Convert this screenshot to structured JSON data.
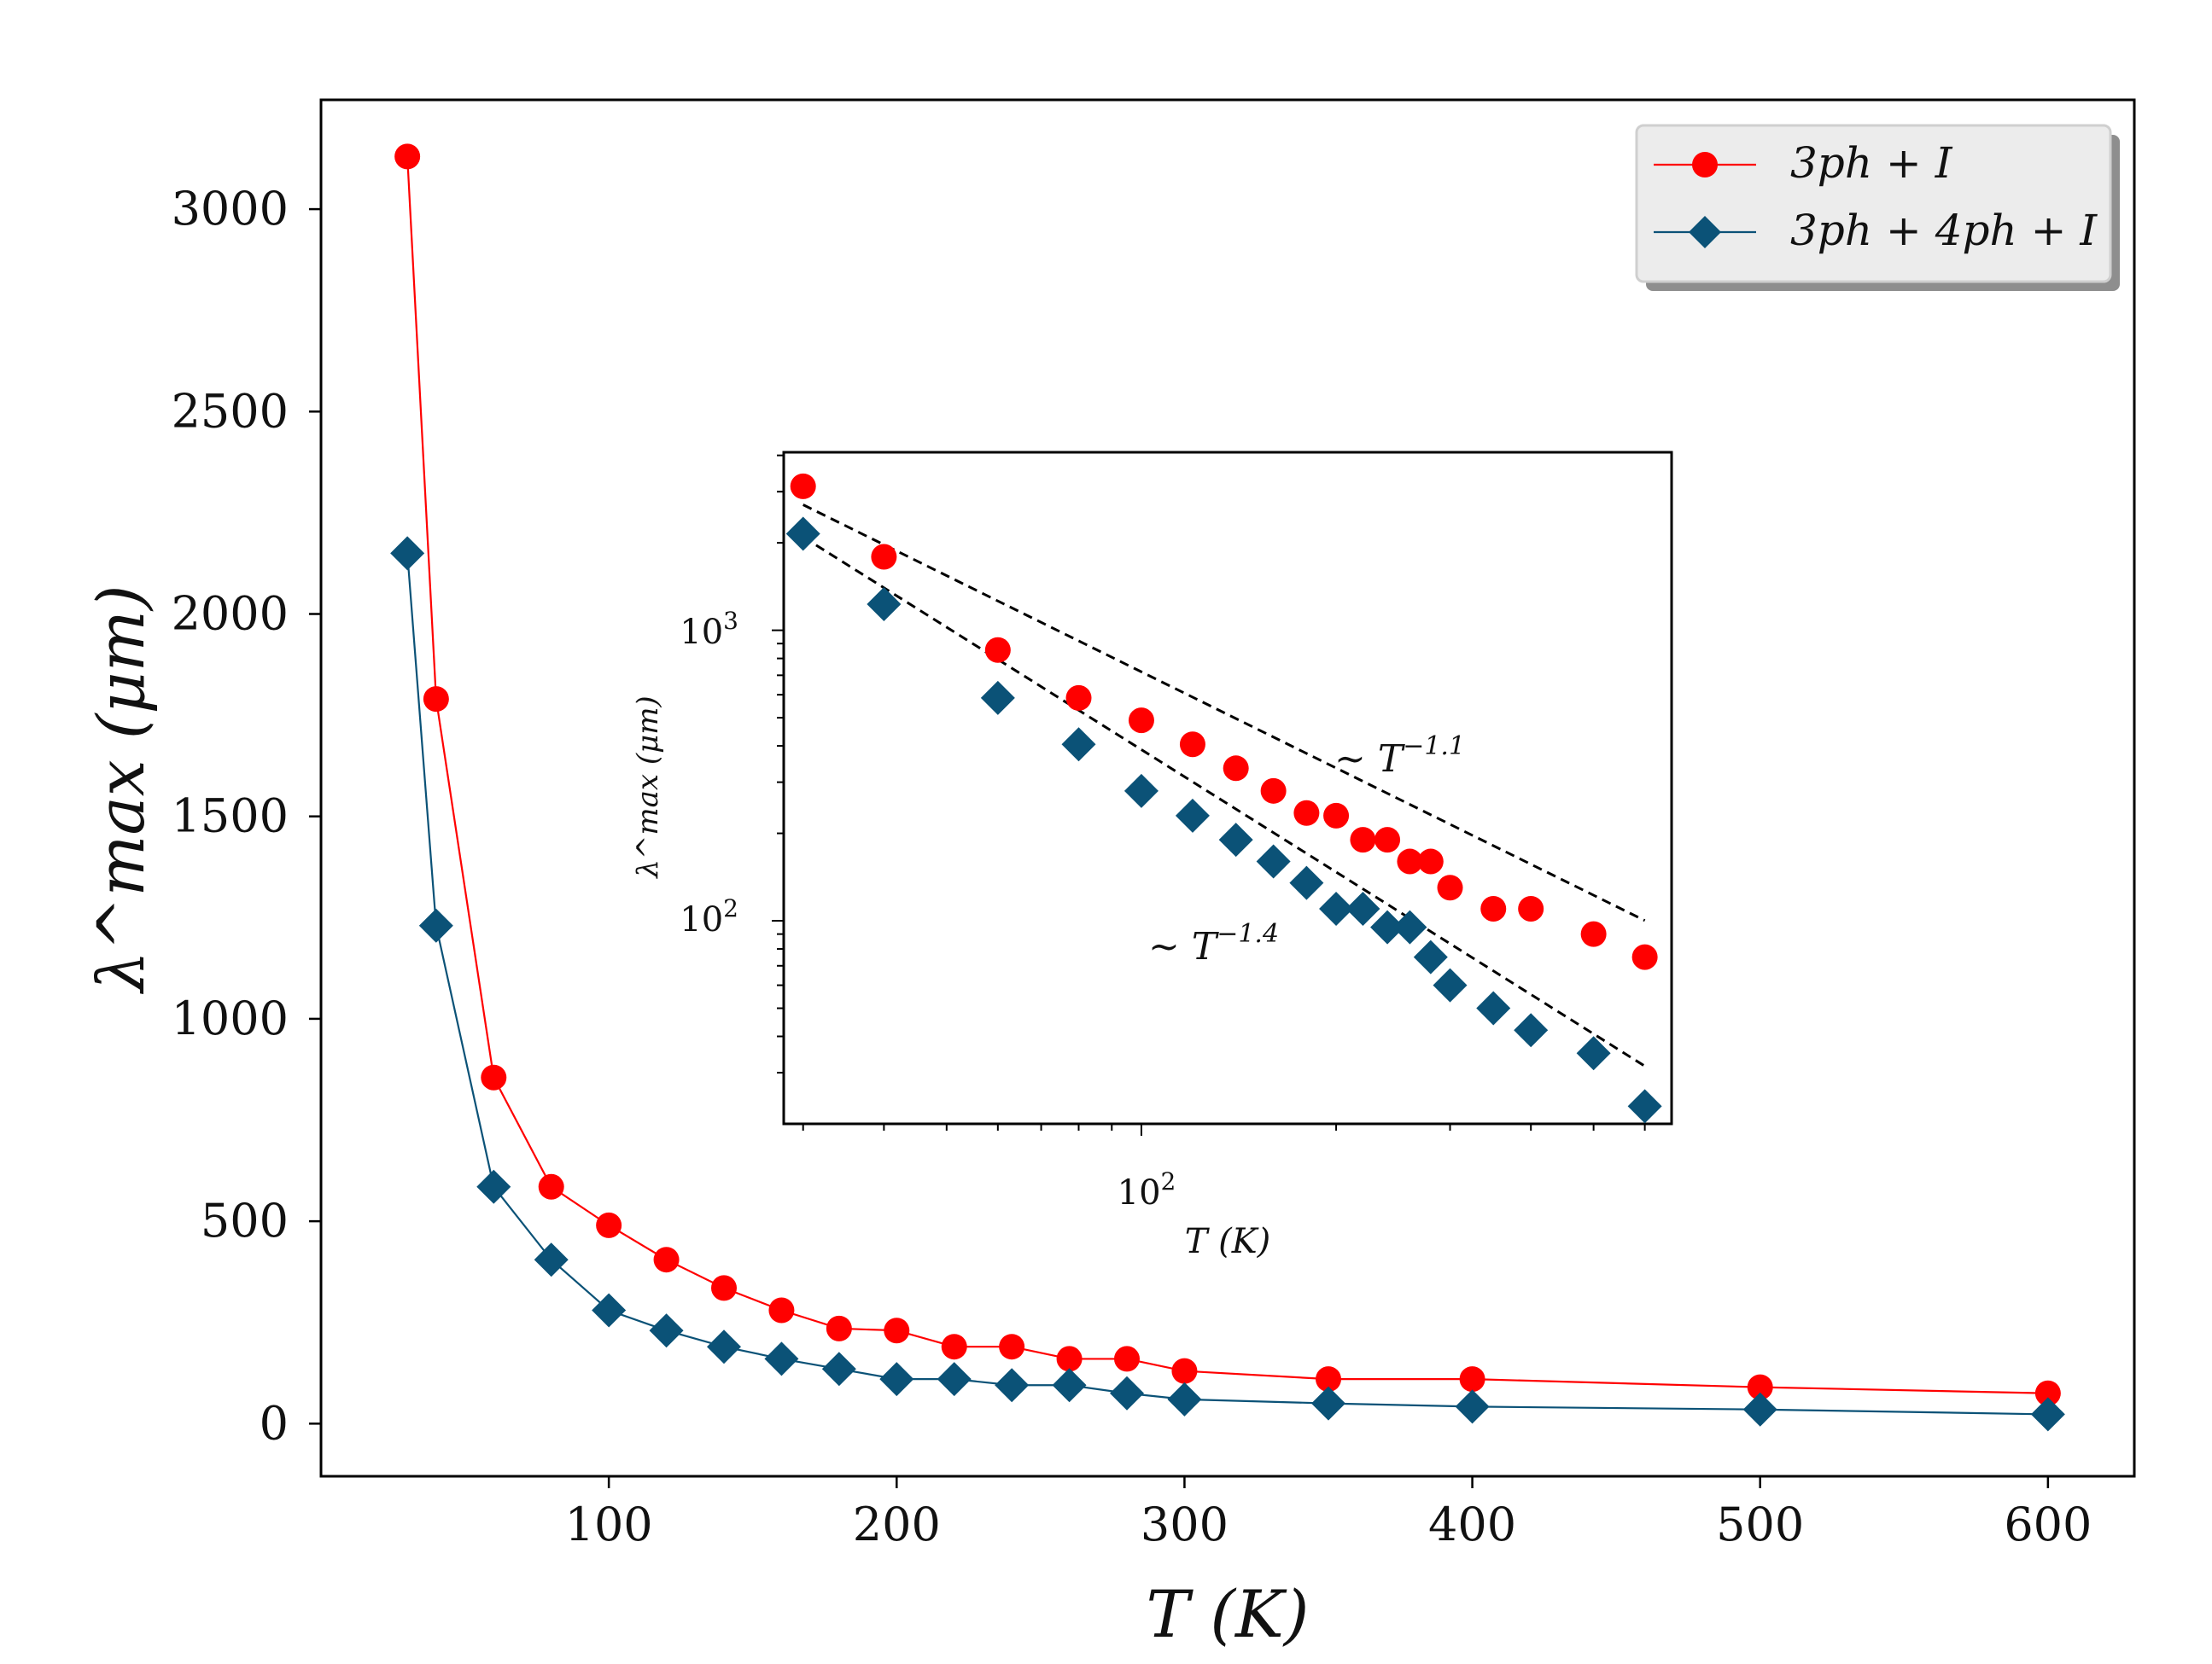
{
  "chart_data": [
    {
      "type": "line",
      "name": "main",
      "xlabel": "T (K)",
      "ylabel": "λ^max (μm)",
      "xlim": [
        0,
        630
      ],
      "ylim": [
        -130,
        3270
      ],
      "xticks": [
        100,
        200,
        300,
        400,
        500,
        600
      ],
      "yticks": [
        0,
        500,
        1000,
        1500,
        2000,
        2500,
        3000
      ],
      "x": [
        30,
        40,
        60,
        80,
        100,
        120,
        140,
        160,
        180,
        200,
        220,
        240,
        260,
        280,
        300,
        350,
        400,
        500,
        600
      ],
      "series": [
        {
          "name": "3ph + I",
          "color": "#ff0000",
          "marker": "circle",
          "values": [
            3130,
            1790,
            855,
            585,
            490,
            405,
            335,
            280,
            235,
            230,
            190,
            190,
            160,
            160,
            130,
            110,
            110,
            90,
            75
          ]
        },
        {
          "name": "3ph + 4ph + I",
          "color": "#0b5277",
          "marker": "diamond",
          "values": [
            2150,
            1230,
            585,
            405,
            280,
            230,
            190,
            160,
            135,
            110,
            110,
            95,
            95,
            75,
            60,
            50,
            42,
            35,
            23
          ]
        }
      ],
      "legend": {
        "position": "top-right",
        "entries": [
          "3ph + I",
          "3ph + 4ph + I"
        ]
      }
    },
    {
      "type": "line",
      "name": "inset",
      "scale": "log-log",
      "xlabel": "T (K)",
      "ylabel": "λ^max (μm)",
      "xlim": [
        28,
        660
      ],
      "ylim": [
        20,
        4100
      ],
      "xtick_label": "10^2",
      "ytick_labels": [
        "10^2",
        "10^3"
      ],
      "annotations": [
        "~ T^-1.1",
        "~ T^-1.4"
      ],
      "fits": [
        {
          "label": "~ T^-1.1",
          "amplitude": 114000,
          "exponent": -1.1,
          "range": [
            30,
            600
          ]
        },
        {
          "label": "~ T^-1.4",
          "amplitude": 245000,
          "exponent": -1.4,
          "range": [
            30,
            600
          ]
        }
      ]
    }
  ],
  "colors": {
    "red_series": "#ff0000",
    "blue_series": "#0b5277",
    "fit_line": "#000000",
    "legend_bg": "#ececec"
  }
}
